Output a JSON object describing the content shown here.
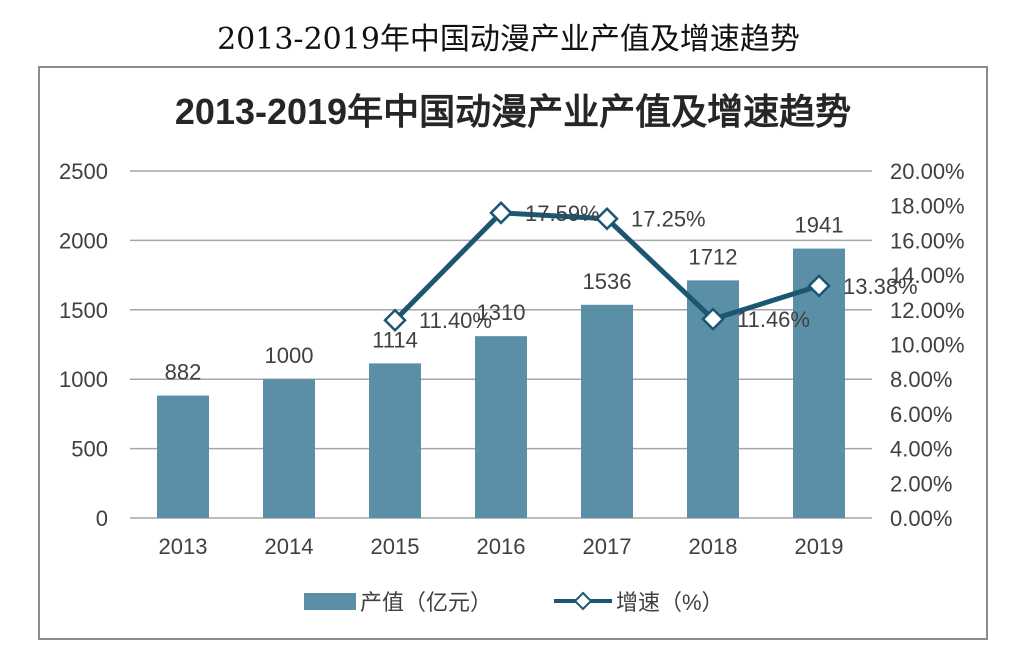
{
  "page_title": "2013-2019年中国动漫产业产值及增速趋势",
  "chart_data": {
    "type": "bar",
    "title": "2013-2019年中国动漫产业产值及增速趋势",
    "categories": [
      "2013",
      "2014",
      "2015",
      "2016",
      "2017",
      "2018",
      "2019"
    ],
    "series": [
      {
        "name": "产值（亿元）",
        "type": "bar",
        "axis": "left",
        "values": [
          882,
          1000,
          1114,
          1310,
          1536,
          1712,
          1941
        ],
        "labels": [
          "882",
          "1000",
          "1114",
          "1310",
          "1536",
          "1712",
          "1941"
        ]
      },
      {
        "name": "增速（%）",
        "type": "line",
        "axis": "right",
        "values": [
          null,
          null,
          11.4,
          17.59,
          17.25,
          11.46,
          13.38
        ],
        "labels": [
          "",
          "",
          "11.40%",
          "17.59%",
          "17.25%",
          "11.46%",
          "13.38%"
        ]
      }
    ],
    "y_left": {
      "min": 0,
      "max": 2500,
      "ticks": [
        0,
        500,
        1000,
        1500,
        2000,
        2500
      ],
      "tick_labels": [
        "0",
        "500",
        "1000",
        "1500",
        "2000",
        "2500"
      ]
    },
    "y_right": {
      "min": 0,
      "max": 20,
      "ticks": [
        0,
        2,
        4,
        6,
        8,
        10,
        12,
        14,
        16,
        18,
        20
      ],
      "tick_labels": [
        "0.00%",
        "2.00%",
        "4.00%",
        "6.00%",
        "8.00%",
        "10.00%",
        "12.00%",
        "14.00%",
        "16.00%",
        "18.00%",
        "20.00%"
      ]
    },
    "grid": true,
    "legend": "bottom",
    "colors": {
      "bar": "#5b8fa8",
      "line": "#1b5770",
      "marker_fill": "#ffffff",
      "grid": "#a6a6a6"
    }
  }
}
